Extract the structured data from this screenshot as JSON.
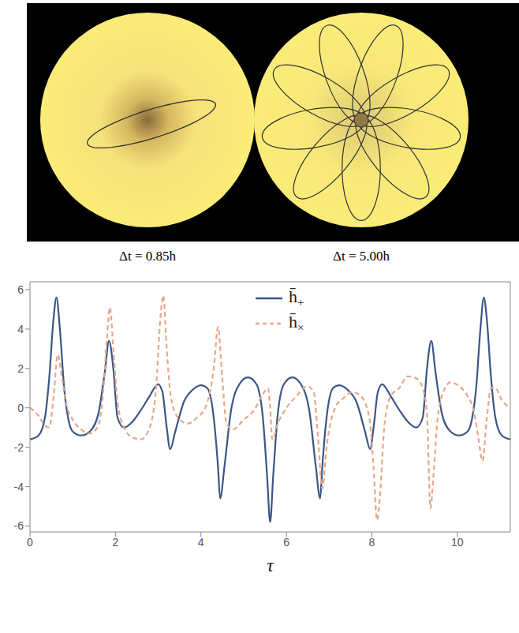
{
  "illustration": {
    "panels": [
      {
        "caption": "Δt = 0.85h"
      },
      {
        "caption": "Δt = 5.00h"
      }
    ]
  },
  "chart_data": {
    "type": "line",
    "x_label": "τ",
    "xlim": [
      0,
      11.24
    ],
    "xticks": [
      0,
      2,
      4,
      6,
      8,
      10
    ],
    "ylim": [
      -6.3,
      6.4
    ],
    "yticks": [
      -6,
      -4,
      -2,
      0,
      2,
      4,
      6
    ],
    "grid": false,
    "legend": "top",
    "series": [
      {
        "name": "h̄+",
        "color": "#3b5687",
        "line_style": "solid",
        "x": [
          0,
          0.2,
          0.35,
          0.45,
          0.55,
          0.62,
          0.7,
          0.8,
          0.9,
          1.0,
          1.2,
          1.4,
          1.6,
          1.75,
          1.85,
          1.95,
          2.05,
          2.2,
          2.4,
          2.6,
          2.8,
          3.0,
          3.1,
          3.2,
          3.28,
          3.4,
          3.6,
          3.8,
          4.0,
          4.15,
          4.3,
          4.4,
          4.45,
          4.55,
          4.7,
          4.9,
          5.1,
          5.3,
          5.45,
          5.55,
          5.62,
          5.69,
          5.79,
          5.94,
          6.14,
          6.34,
          6.54,
          6.69,
          6.79,
          6.84,
          6.94,
          7.09,
          7.24,
          7.44,
          7.64,
          7.84,
          7.96,
          8.04,
          8.14,
          8.24,
          8.44,
          8.64,
          8.84,
          9.04,
          9.19,
          9.29,
          9.39,
          9.49,
          9.64,
          9.84,
          10.04,
          10.24,
          10.34,
          10.44,
          10.54,
          10.62,
          10.69,
          10.79,
          10.89,
          11.04,
          11.24
        ],
        "values": [
          -1.6,
          -1.4,
          -0.5,
          1.5,
          4.5,
          5.6,
          4.0,
          1.0,
          -0.6,
          -1.2,
          -1.4,
          -1.2,
          -0.3,
          1.8,
          3.4,
          2.0,
          -0.5,
          -1.0,
          -0.7,
          -0.1,
          0.6,
          1.2,
          0.8,
          -1.0,
          -2.1,
          -1.2,
          0.3,
          0.9,
          1.15,
          1.0,
          -0.5,
          -3.0,
          -4.6,
          -3.0,
          -0.2,
          1.2,
          1.55,
          1.2,
          -0.5,
          -3.5,
          -5.8,
          -3.5,
          -0.5,
          1.2,
          1.55,
          1.2,
          -0.2,
          -3.0,
          -4.6,
          -3.0,
          -0.5,
          1.0,
          1.15,
          0.9,
          0.3,
          -1.2,
          -2.1,
          -1.0,
          0.8,
          1.2,
          0.6,
          -0.1,
          -0.7,
          -1.0,
          -0.5,
          2.0,
          3.4,
          1.8,
          -0.3,
          -1.2,
          -1.4,
          -1.2,
          -0.6,
          1.0,
          4.0,
          5.6,
          4.5,
          1.5,
          -0.5,
          -1.4,
          -1.6
        ]
      },
      {
        "name": "h̄×",
        "color": "#e6a78a",
        "line_style": "dashed",
        "x": [
          0,
          0.2,
          0.35,
          0.45,
          0.55,
          0.65,
          0.75,
          0.85,
          1.0,
          1.2,
          1.4,
          1.6,
          1.7,
          1.8,
          1.87,
          1.95,
          2.05,
          2.2,
          2.4,
          2.6,
          2.8,
          2.95,
          3.05,
          3.12,
          3.2,
          3.3,
          3.5,
          3.7,
          3.9,
          4.1,
          4.3,
          4.4,
          4.5,
          4.6,
          4.75,
          5.0,
          5.25,
          5.45,
          5.57,
          5.62,
          5.67,
          5.8,
          6.0,
          6.24,
          6.49,
          6.64,
          6.74,
          6.84,
          6.94,
          7.14,
          7.34,
          7.54,
          7.74,
          7.94,
          8.04,
          8.12,
          8.19,
          8.29,
          8.44,
          8.64,
          8.84,
          9.04,
          9.19,
          9.29,
          9.37,
          9.44,
          9.54,
          9.69,
          9.84,
          10.04,
          10.24,
          10.39,
          10.49,
          10.59,
          10.69,
          10.79,
          10.89,
          11.04,
          11.24
        ],
        "values": [
          0,
          -0.4,
          -0.9,
          -1.0,
          0.5,
          2.7,
          1.5,
          0.2,
          -0.6,
          -1.1,
          -1.3,
          -0.9,
          0.5,
          3.5,
          5.1,
          3.0,
          0.3,
          -1.0,
          -1.5,
          -1.6,
          -1.0,
          1.0,
          4.5,
          5.7,
          3.0,
          0.5,
          -0.6,
          -0.8,
          -0.5,
          0.0,
          2.0,
          4.1,
          1.5,
          -0.8,
          -1.1,
          -0.6,
          -0.1,
          0.7,
          1.0,
          0.0,
          -1.6,
          -0.8,
          0.0,
          0.6,
          1.1,
          0.8,
          -1.5,
          -4.1,
          -2.0,
          0.0,
          0.5,
          0.8,
          0.6,
          -0.5,
          -3.0,
          -5.7,
          -4.5,
          -1.0,
          0.6,
          1.0,
          1.6,
          1.5,
          1.0,
          -0.3,
          -5.1,
          -3.5,
          -0.5,
          0.9,
          1.3,
          1.1,
          0.6,
          -0.2,
          -1.5,
          -2.7,
          -0.5,
          1.0,
          1.0,
          0.4,
          0.0
        ]
      }
    ]
  }
}
